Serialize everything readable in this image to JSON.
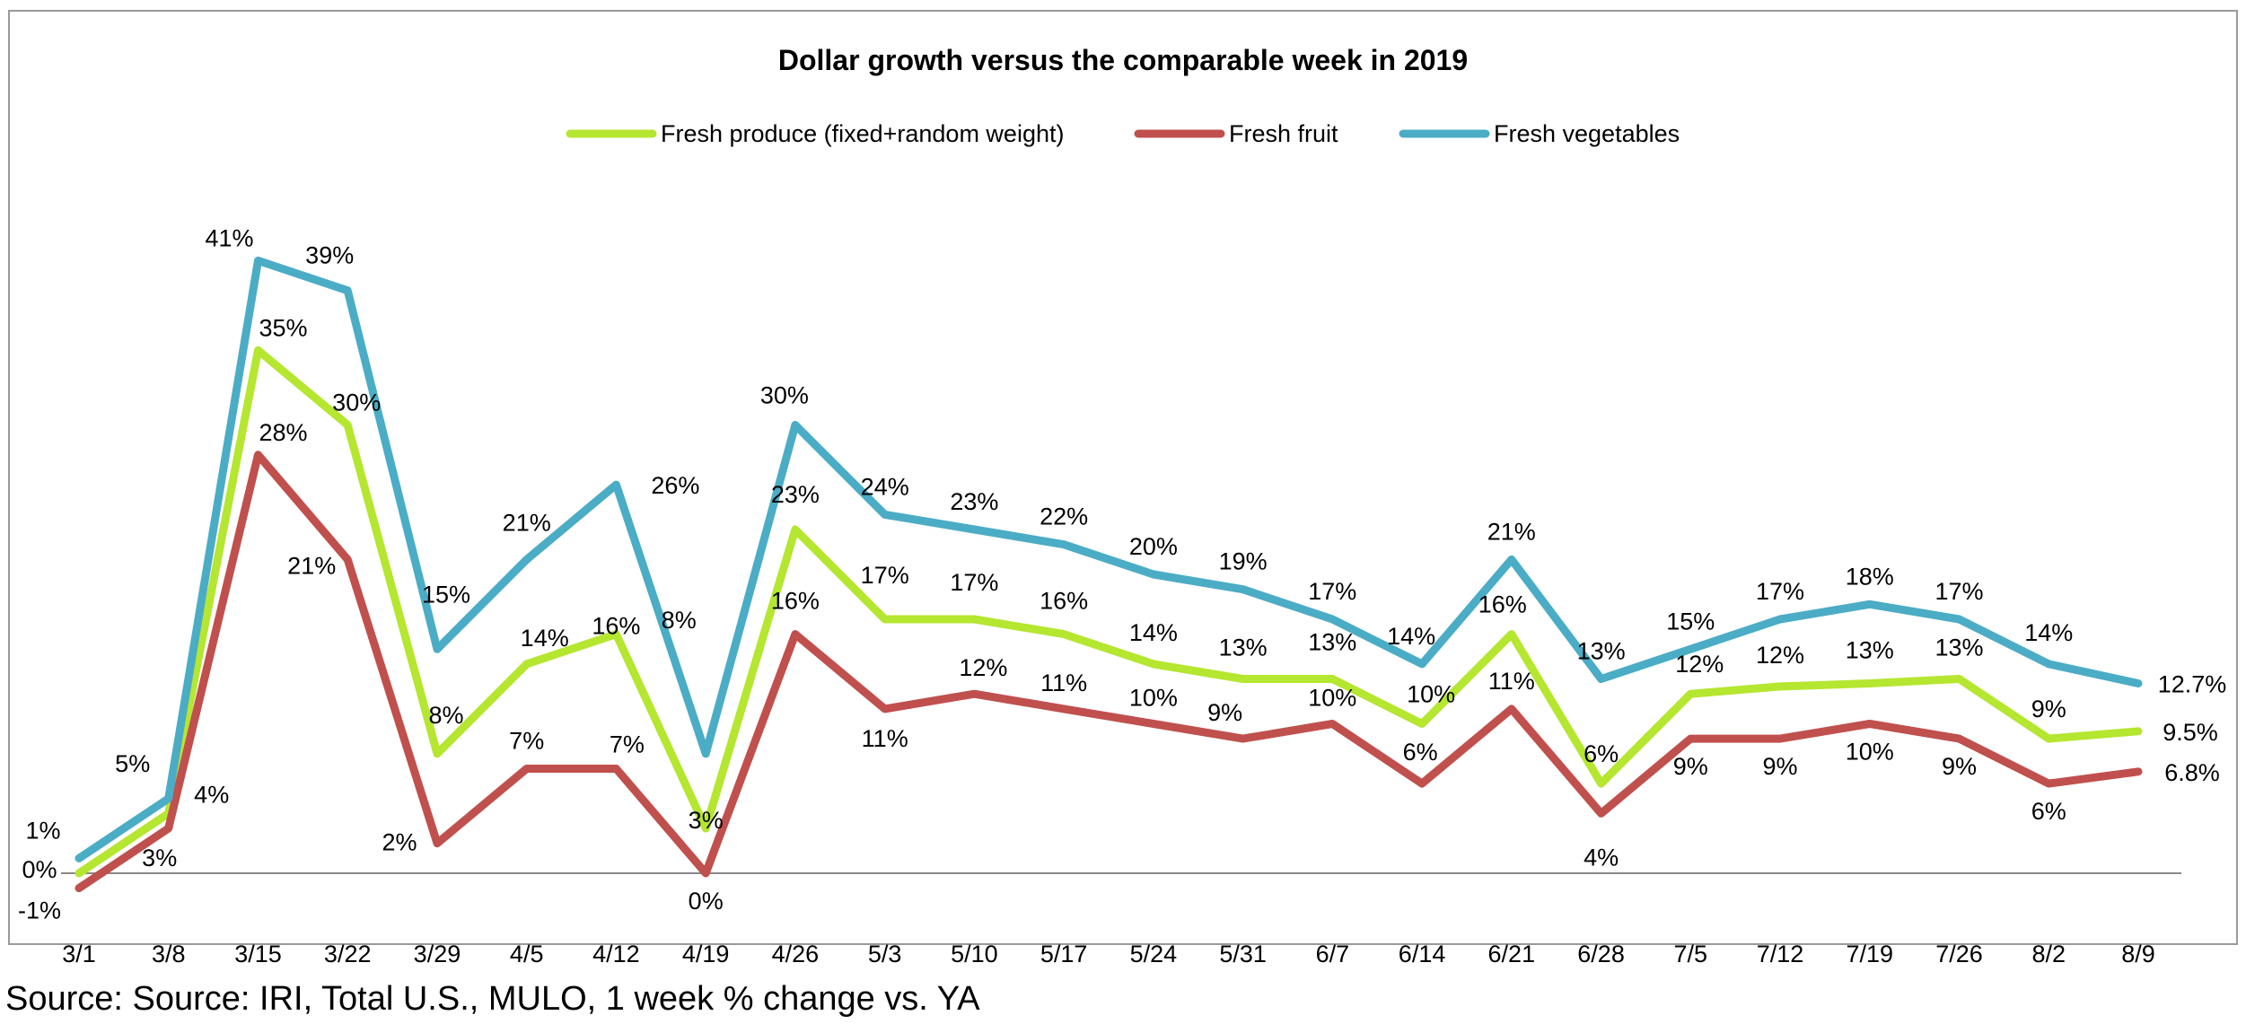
{
  "chart_data": {
    "type": "line",
    "title": "Dollar growth versus the comparable week in 2019",
    "xlabel": "",
    "ylabel": "",
    "categories": [
      "3/1",
      "3/8",
      "3/15",
      "3/22",
      "3/29",
      "4/5",
      "4/12",
      "4/19",
      "4/26",
      "5/3",
      "5/10",
      "5/17",
      "5/24",
      "5/31",
      "6/7",
      "6/14",
      "6/21",
      "6/28",
      "7/5",
      "7/12",
      "7/19",
      "7/26",
      "8/2",
      "8/9"
    ],
    "ylim": [
      -1,
      41
    ],
    "grid": false,
    "legend_position": "top",
    "series": [
      {
        "name": "Fresh produce (fixed+random weight)",
        "color": "#b5e630",
        "values": [
          0,
          4,
          35,
          30,
          8,
          14,
          16,
          3,
          23,
          17,
          17,
          16,
          14,
          13,
          13,
          10,
          16,
          6,
          12,
          12.5,
          12.7,
          13,
          9,
          9.5
        ],
        "labels": [
          "0%",
          "4%",
          "35%",
          "30%",
          "8%",
          "14%",
          "16%",
          "3%",
          "23%",
          "17%",
          "17%",
          "16%",
          "14%",
          "13%",
          "13%",
          "10%",
          "16%",
          "6%",
          "12%",
          "12%",
          "13%",
          "13%",
          "9%",
          "9.5%"
        ]
      },
      {
        "name": "Fresh fruit",
        "color": "#c0504d",
        "values": [
          -1,
          3,
          28,
          21,
          2,
          7,
          7,
          0,
          16,
          11,
          12,
          11,
          10,
          9,
          10,
          6,
          11,
          4,
          9,
          9,
          10,
          9,
          6,
          6.8
        ],
        "labels": [
          "-1%",
          "3%",
          "28%",
          "21%",
          "2%",
          "7%",
          "7%",
          "0%",
          "16%",
          "11%",
          "12%",
          "11%",
          "10%",
          "9%",
          "10%",
          "6%",
          "11%",
          "4%",
          "9%",
          "9%",
          "10%",
          "9%",
          "6%",
          "6.8%"
        ]
      },
      {
        "name": "Fresh vegetables",
        "color": "#4bacc6",
        "values": [
          1,
          5,
          41,
          39,
          15,
          21,
          26,
          8,
          30,
          24,
          23,
          22,
          20,
          19,
          17,
          14,
          21,
          13,
          15,
          17,
          18,
          17,
          14,
          12.7
        ],
        "labels": [
          "1%",
          "5%",
          "41%",
          "39%",
          "15%",
          "21%",
          "26%",
          "8%",
          "30%",
          "24%",
          "23%",
          "22%",
          "20%",
          "19%",
          "17%",
          "14%",
          "21%",
          "13%",
          "15%",
          "17%",
          "18%",
          "17%",
          "14%",
          "12.7%"
        ]
      }
    ]
  },
  "source_text": "Source: Source: IRI, Total U.S., MULO, 1 week % change vs. YA"
}
